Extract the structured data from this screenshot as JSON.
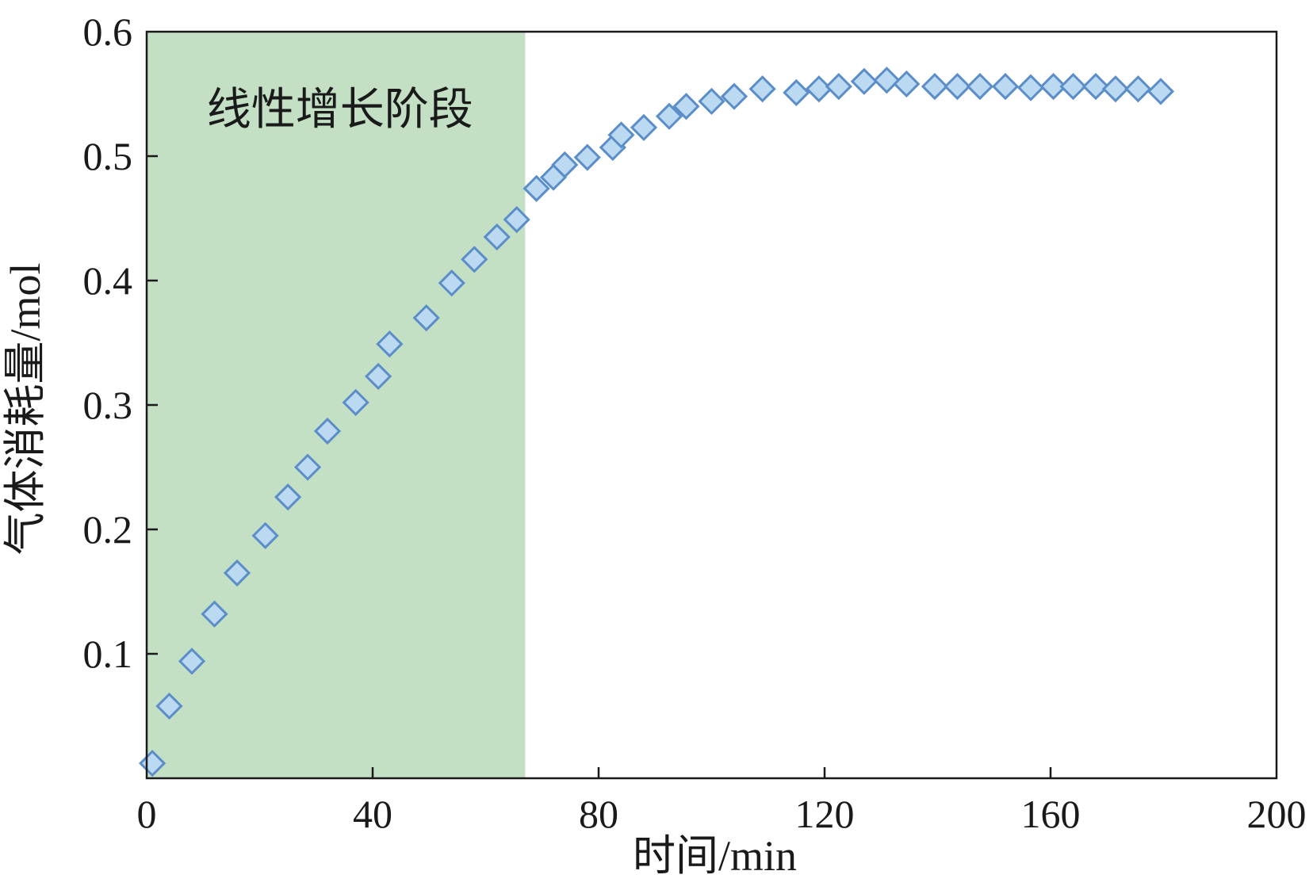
{
  "chart_data": {
    "type": "scatter",
    "title": "",
    "xlabel": "时间/min",
    "ylabel": "气体消耗量/mol",
    "xlim": [
      0,
      200
    ],
    "ylim": [
      0,
      0.6
    ],
    "xticks": [
      0,
      40,
      80,
      120,
      160,
      200
    ],
    "yticks": [
      0.1,
      0.2,
      0.3,
      0.4,
      0.5,
      0.6
    ],
    "xtick_labels": [
      "0",
      "40",
      "80",
      "120",
      "160",
      "200"
    ],
    "ytick_labels": [
      "0.1",
      "0.2",
      "0.3",
      "0.4",
      "0.5",
      "0.6"
    ],
    "grid": false,
    "legend": "none",
    "marker": "diamond",
    "marker_fill": "#bcd9f2",
    "marker_stroke": "#5b8ec9",
    "highlight_region": {
      "label": "线性增长阶段",
      "x_start": 0,
      "x_end": 67,
      "color": "#c3e0c5"
    },
    "series": [
      {
        "x": [
          1,
          4,
          8,
          12,
          16,
          21,
          25,
          28.5,
          32,
          37,
          41,
          43,
          49.5,
          54,
          58,
          62,
          65.5,
          69,
          72,
          74,
          78,
          82.5,
          84,
          88,
          92.5,
          95.5,
          100,
          104,
          109,
          115,
          119,
          122.5,
          127,
          131,
          134.5,
          139.5,
          143.5,
          147.5,
          152,
          156.5,
          160.5,
          164,
          168,
          171.5,
          175.5,
          179.5
        ],
        "y": [
          0.012,
          0.058,
          0.094,
          0.132,
          0.165,
          0.195,
          0.226,
          0.25,
          0.279,
          0.302,
          0.323,
          0.349,
          0.37,
          0.398,
          0.417,
          0.435,
          0.449,
          0.474,
          0.483,
          0.493,
          0.499,
          0.507,
          0.517,
          0.523,
          0.532,
          0.54,
          0.544,
          0.548,
          0.554,
          0.551,
          0.554,
          0.556,
          0.56,
          0.561,
          0.558,
          0.556,
          0.556,
          0.556,
          0.556,
          0.555,
          0.556,
          0.556,
          0.556,
          0.554,
          0.554,
          0.552
        ]
      }
    ]
  }
}
